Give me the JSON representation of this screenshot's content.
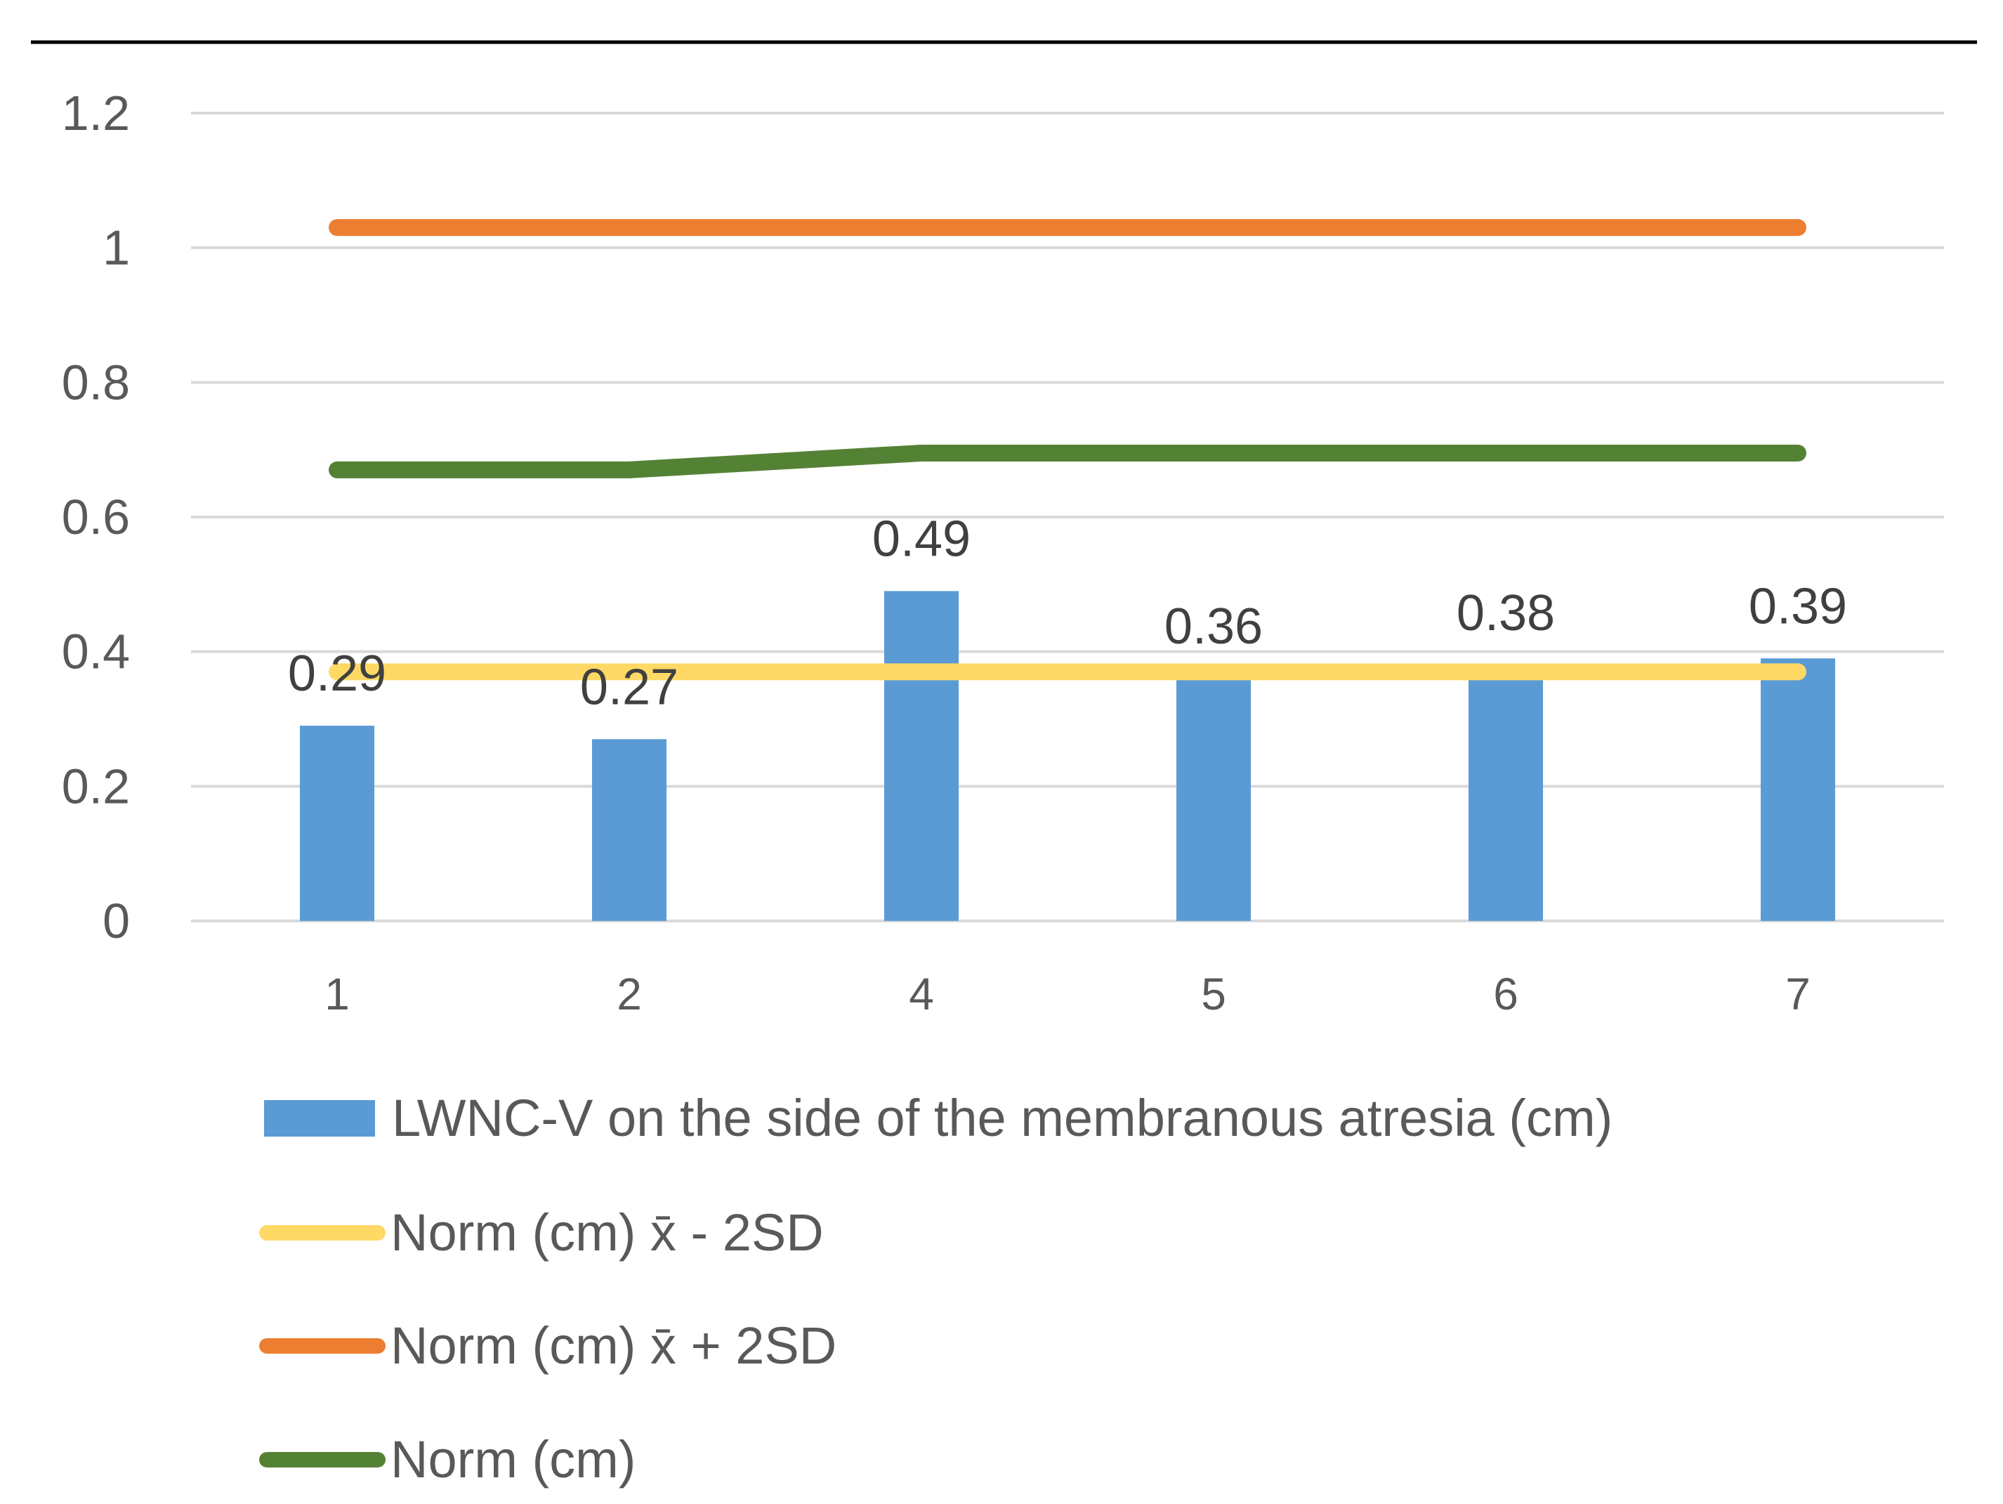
{
  "chart_data": {
    "type": "bar",
    "title": "",
    "xlabel": "",
    "ylabel": "",
    "categories": [
      "1",
      "2",
      "4",
      "5",
      "6",
      "7"
    ],
    "ylim": [
      0,
      1.2
    ],
    "yticks": [
      "0",
      "0.2",
      "0.4",
      "0.6",
      "0.8",
      "1",
      "1.2"
    ],
    "ytick_values": [
      0,
      0.2,
      0.4,
      0.6,
      0.8,
      1.0,
      1.2
    ],
    "grid": true,
    "legend_position": "bottom",
    "series": [
      {
        "name": "LWNC-V on the side of the membranous atresia (cm)",
        "kind": "bar",
        "color": "#5B9BD5",
        "values": [
          0.29,
          0.27,
          0.49,
          0.36,
          0.38,
          0.39
        ],
        "labels": [
          "0.29",
          "0.27",
          "0.49",
          "0.36",
          "0.38",
          "0.39"
        ]
      },
      {
        "name": "Norm (cm) x̄ - 2SD",
        "kind": "line",
        "color": "#FFD966",
        "values": [
          0.37,
          0.37,
          0.37,
          0.37,
          0.37,
          0.37
        ]
      },
      {
        "name": "Norm (cm) x̄ + 2SD",
        "kind": "line",
        "color": "#ED7D31",
        "values": [
          1.03,
          1.03,
          1.03,
          1.03,
          1.03,
          1.03
        ]
      },
      {
        "name": "Norm (cm)",
        "kind": "line",
        "color": "#548235",
        "values": [
          0.67,
          0.67,
          0.695,
          0.695,
          0.695,
          0.695
        ]
      }
    ]
  }
}
